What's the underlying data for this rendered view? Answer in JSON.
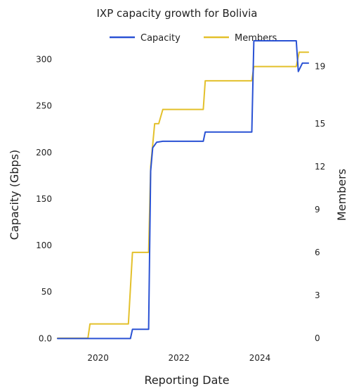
{
  "chart_data": {
    "type": "line",
    "title": "IXP capacity growth for Bolivia",
    "xlabel": "Reporting Date",
    "ylabel": "Capacity (Gbps)",
    "y2label": "Members",
    "xlim": [
      2019.0,
      2025.25
    ],
    "ylim": [
      -5,
      320
    ],
    "y2lim": [
      -0.35,
      20.8
    ],
    "x_ticks": [
      2020,
      2022,
      2024
    ],
    "x_tick_labels": [
      "2020",
      "2022",
      "2024"
    ],
    "y_ticks": [
      0,
      50,
      100,
      150,
      200,
      250,
      300
    ],
    "y_tick_labels": [
      "0.0",
      "50",
      "100",
      "150",
      "200",
      "250",
      "300"
    ],
    "y2_ticks": [
      0,
      3,
      6,
      9,
      12,
      15,
      19
    ],
    "y2_tick_labels": [
      "0",
      "3",
      "6",
      "9",
      "12",
      "15",
      "19"
    ],
    "grid": false,
    "legend_position": "top-center",
    "series": [
      {
        "name": "Capacity",
        "color": "#2a52d4",
        "axis": "left",
        "x": [
          2019.0,
          2020.8,
          2020.85,
          2021.25,
          2021.3,
          2021.35,
          2021.45,
          2021.6,
          2022.6,
          2022.65,
          2023.8,
          2023.85,
          2024.9,
          2024.95,
          2025.05,
          2025.2
        ],
        "y": [
          0,
          0,
          10,
          10,
          180,
          205,
          211,
          212,
          212,
          222,
          222,
          320,
          320,
          287,
          296,
          296
        ]
      },
      {
        "name": "Members",
        "color": "#e3c02b",
        "axis": "right",
        "x": [
          2019.0,
          2019.75,
          2019.8,
          2020.75,
          2020.85,
          2020.9,
          2021.25,
          2021.3,
          2021.4,
          2021.5,
          2021.6,
          2022.6,
          2022.65,
          2023.8,
          2023.85,
          2024.9,
          2024.97,
          2025.05,
          2025.2
        ],
        "y": [
          0,
          0,
          1,
          1,
          6,
          6,
          6,
          12,
          15,
          15,
          16,
          16,
          18,
          18,
          19,
          19,
          20,
          20,
          20
        ]
      }
    ]
  }
}
